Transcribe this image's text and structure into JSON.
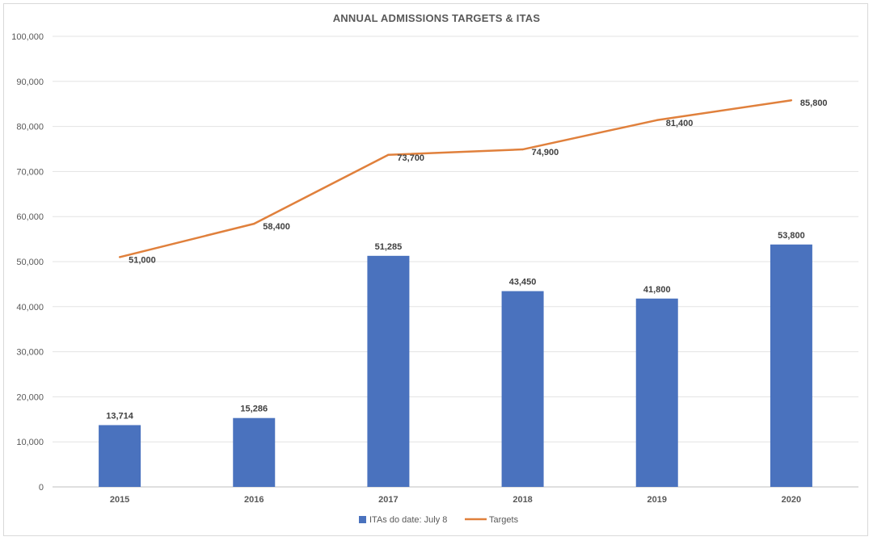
{
  "chart_data": {
    "type": "bar",
    "title": "ANNUAL ADMISSIONS TARGETS & ITAS",
    "categories": [
      "2015",
      "2016",
      "2017",
      "2018",
      "2019",
      "2020"
    ],
    "series": [
      {
        "name": "ITAs do date: July 8",
        "type": "bar",
        "color": "#4a72be",
        "values": [
          13714,
          15286,
          51285,
          43450,
          41800,
          53800
        ],
        "labels": [
          "13,714",
          "15,286",
          "51,285",
          "43,450",
          "41,800",
          "53,800"
        ]
      },
      {
        "name": "Targets",
        "type": "line",
        "color": "#e0803c",
        "values": [
          51000,
          58400,
          73700,
          74900,
          81400,
          85800
        ],
        "labels": [
          "51,000",
          "58,400",
          "73,700",
          "74,900",
          "81,400",
          "85,800"
        ]
      }
    ],
    "ylim": [
      0,
      100000
    ],
    "yticks": [
      0,
      10000,
      20000,
      30000,
      40000,
      50000,
      60000,
      70000,
      80000,
      90000,
      100000
    ],
    "ytick_labels": [
      "0",
      "10,000",
      "20,000",
      "30,000",
      "40,000",
      "50,000",
      "60,000",
      "70,000",
      "80,000",
      "90,000",
      "100,000"
    ],
    "grid": true,
    "legend_position": "bottom"
  }
}
